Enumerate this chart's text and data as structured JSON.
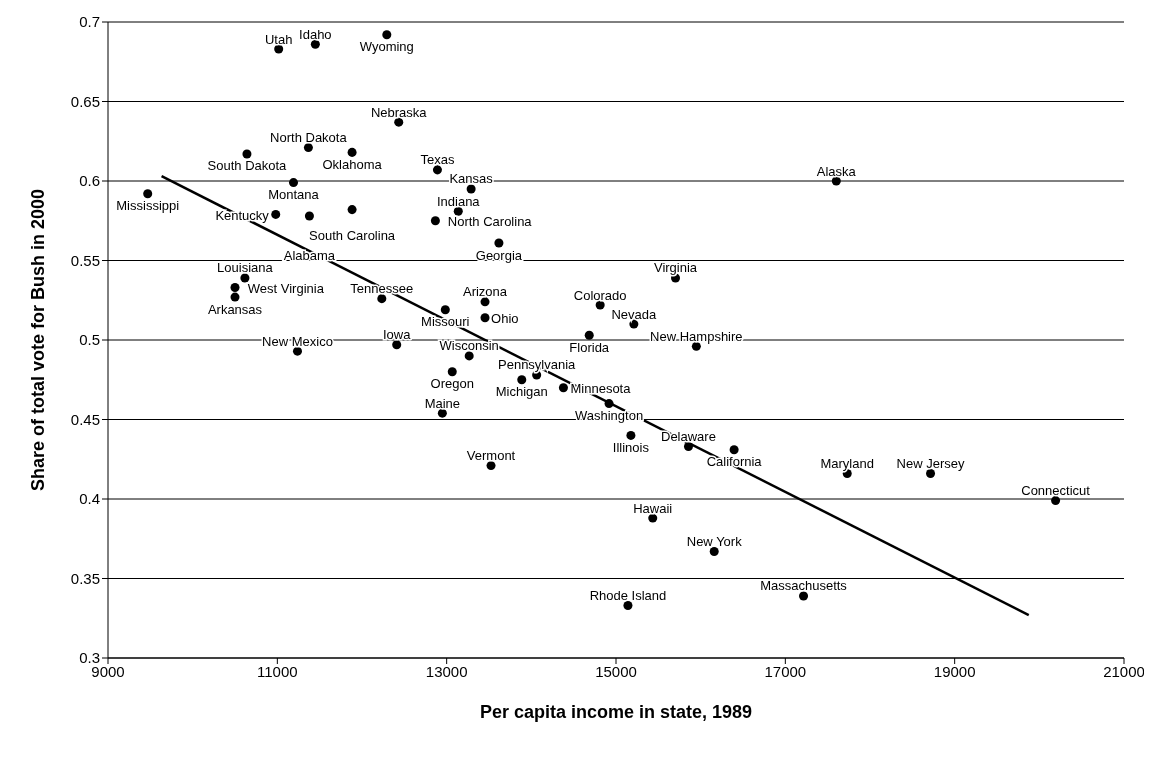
{
  "chart_data": {
    "type": "scatter",
    "xlabel": "Per capita income in state, 1989",
    "ylabel": "Share of total vote for Bush in 2000",
    "xlim": [
      9000,
      21000
    ],
    "xticks": [
      9000,
      11000,
      13000,
      15000,
      17000,
      19000,
      21000
    ],
    "ylim": [
      0.3,
      0.7
    ],
    "yticks": [
      0.3,
      0.35,
      0.4,
      0.45,
      0.5,
      0.55,
      0.6,
      0.65,
      0.7
    ],
    "grid": "y",
    "marker": "circle",
    "series": [
      {
        "color": "#000000",
        "x": [
          11016,
          11449,
          12293,
          12434,
          11367,
          10641,
          11883,
          12891,
          11191,
          13289,
          17602,
          9469,
          11883,
          13137,
          10981,
          11379,
          12867,
          13617,
          10617,
          10500,
          10500,
          15703,
          12234,
          13453,
          14813,
          12984,
          13453,
          15211,
          14684,
          12410,
          11238,
          15949,
          13266,
          13066,
          14063,
          13887,
          14379,
          14918,
          12949,
          15176,
          15856,
          16395,
          13524,
          17731,
          18715,
          20192,
          15434,
          16160,
          17215,
          15141
        ],
        "values": [
          0.683,
          0.686,
          0.692,
          0.637,
          0.621,
          0.617,
          0.618,
          0.607,
          0.599,
          0.595,
          0.6,
          0.592,
          0.582,
          0.581,
          0.579,
          0.578,
          0.575,
          0.561,
          0.539,
          0.533,
          0.527,
          0.539,
          0.526,
          0.524,
          0.522,
          0.519,
          0.514,
          0.51,
          0.503,
          0.497,
          0.493,
          0.496,
          0.49,
          0.48,
          0.478,
          0.475,
          0.47,
          0.46,
          0.454,
          0.44,
          0.433,
          0.431,
          0.421,
          0.416,
          0.416,
          0.399,
          0.388,
          0.367,
          0.339,
          0.333
        ],
        "value_labels": [
          "Utah",
          "Idaho",
          "Wyoming",
          "Nebraska",
          "North Dakota",
          "South Dakota",
          "Oklahoma",
          "Texas",
          "Montana",
          "Kansas",
          "Alaska",
          "Mississippi",
          "South Carolina",
          "Indiana",
          "Kentucky",
          "Alabama",
          "North Carolina",
          "Georgia",
          "Louisiana",
          "West Virginia",
          "Arkansas",
          "Virginia",
          "Tennessee",
          "Arizona",
          "Colorado",
          "Missouri",
          "Ohio",
          "Nevada",
          "Florida",
          "Iowa",
          "New Mexico",
          "New Hampshire",
          "Wisconsin",
          "Oregon",
          "Pennsylvania",
          "Michigan",
          "Minnesota",
          "Washington",
          "Maine",
          "Illinois",
          "Delaware",
          "California",
          "Vermont",
          "Maryland",
          "New Jersey",
          "Connecticut",
          "Hawaii",
          "New York",
          "Massachusetts",
          "Rhode Island"
        ]
      },
      {
        "type": "line",
        "color": "#000000",
        "line_style": "solid",
        "marker": "none",
        "x": [
          9633,
          19875
        ],
        "values": [
          0.603,
          0.327
        ]
      }
    ]
  }
}
